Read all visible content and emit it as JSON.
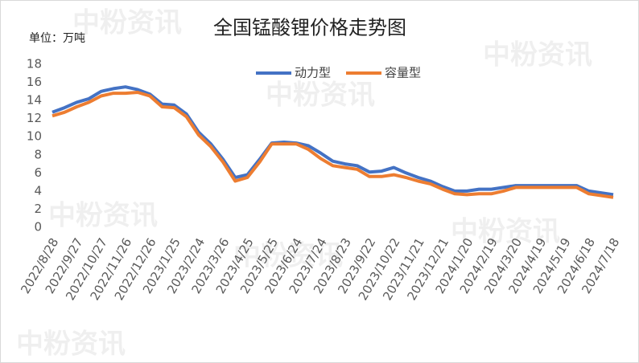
{
  "chart_data": {
    "type": "line",
    "title": "全国锰酸锂价格走势图",
    "unit_label": "单位：万吨",
    "watermark": "中粉资讯",
    "categories": [
      "2022/8/28",
      null,
      "2022/9/27",
      null,
      "2022/10/27",
      null,
      "2022/11/26",
      null,
      "2022/12/26",
      null,
      "2023/1/25",
      null,
      "2023/2/24",
      null,
      "2023/3/26",
      null,
      "2023/4/25",
      null,
      "2023/5/25",
      null,
      "2023/6/24",
      null,
      "2023/7/24",
      null,
      "2023/8/23",
      null,
      "2023/9/22",
      null,
      "2023/10/22",
      null,
      "2023/11/21",
      null,
      "2023/12/21",
      null,
      "2024/1/20",
      null,
      "2024/2/19",
      null,
      "2024/3/20",
      null,
      "2024/4/19",
      null,
      "2024/5/19",
      null,
      "2024/6/18",
      null,
      "2024/7/18"
    ],
    "series": [
      {
        "name": "动力型",
        "color": "#4472c4",
        "values": [
          12.7,
          13.2,
          13.8,
          14.2,
          15.0,
          15.3,
          15.5,
          15.2,
          14.7,
          13.6,
          13.5,
          12.5,
          10.5,
          9.2,
          7.5,
          5.5,
          5.8,
          7.5,
          9.3,
          9.4,
          9.3,
          9.0,
          8.2,
          7.3,
          7.0,
          6.8,
          6.1,
          6.2,
          6.6,
          6.0,
          5.5,
          5.1,
          4.5,
          4.0,
          4.0,
          4.2,
          4.2,
          4.4,
          4.6,
          4.6,
          4.6,
          4.6,
          4.6,
          4.6,
          4.0,
          3.8,
          3.6
        ]
      },
      {
        "name": "容量型",
        "color": "#ed7d31",
        "values": [
          12.3,
          12.7,
          13.3,
          13.8,
          14.5,
          14.8,
          14.8,
          14.9,
          14.5,
          13.3,
          13.2,
          12.2,
          10.2,
          8.9,
          7.2,
          5.1,
          5.5,
          7.2,
          9.2,
          9.2,
          9.2,
          8.6,
          7.6,
          6.8,
          6.6,
          6.4,
          5.6,
          5.6,
          5.8,
          5.5,
          5.1,
          4.8,
          4.2,
          3.7,
          3.6,
          3.7,
          3.7,
          4.0,
          4.4,
          4.4,
          4.4,
          4.4,
          4.4,
          4.4,
          3.7,
          3.5,
          3.3
        ]
      }
    ],
    "ylim": [
      0,
      18
    ],
    "yticks": [
      0,
      2,
      4,
      6,
      8,
      10,
      12,
      14,
      16,
      18
    ],
    "grid": false,
    "legend": "top"
  }
}
